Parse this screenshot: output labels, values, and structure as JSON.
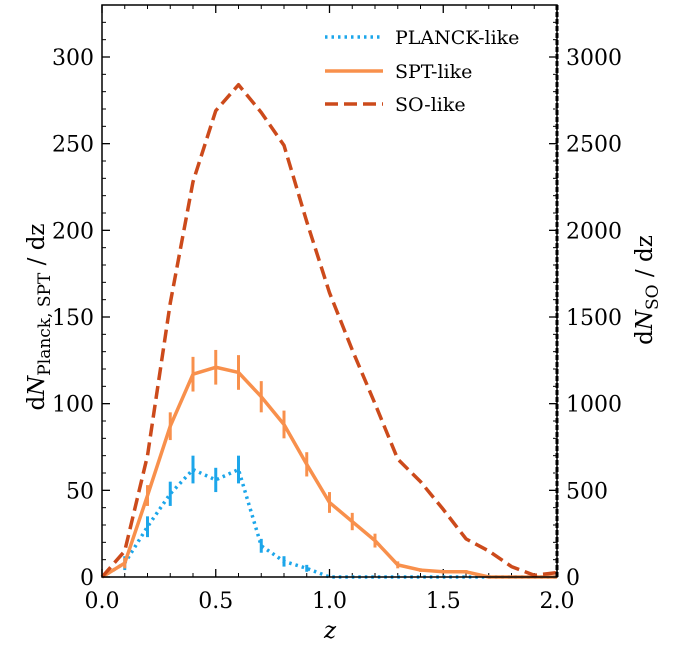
{
  "chart_data": {
    "type": "line",
    "xlabel": "z",
    "ylabel_left": {
      "prefix": "d",
      "var": "N",
      "sub": "Planck, SPT",
      "suffix": " / dz"
    },
    "ylabel_right": {
      "prefix": "d",
      "var": "N",
      "sub": "SO",
      "suffix": " / dz"
    },
    "xlim": [
      0,
      2
    ],
    "ylim_left": [
      0,
      330
    ],
    "ylim_right": [
      0,
      3300
    ],
    "x_ticks": [
      "0.0",
      "0.5",
      "1.0",
      "1.5",
      "2.0"
    ],
    "y_ticks_left": [
      "0",
      "50",
      "100",
      "150",
      "200",
      "250",
      "300"
    ],
    "y_ticks_right": [
      "0",
      "500",
      "1000",
      "1500",
      "2000",
      "2500",
      "3000"
    ],
    "legend_position": "top-right",
    "series": [
      {
        "name": "PLANCK-like",
        "axis": "left",
        "style": "dotted",
        "color": "#1ca6ea",
        "x": [
          0.0,
          0.1,
          0.2,
          0.3,
          0.4,
          0.5,
          0.6,
          0.7,
          0.8,
          0.9,
          1.0,
          1.1,
          1.2,
          1.3,
          1.4,
          1.5,
          1.6,
          1.7,
          1.8,
          1.9,
          2.0
        ],
        "values": [
          0,
          8,
          29,
          48,
          62,
          56,
          62,
          18,
          9,
          5,
          0,
          0,
          0,
          0,
          0,
          0,
          0,
          0,
          0,
          0,
          0
        ],
        "errors": [
          0,
          4,
          6,
          7,
          8,
          7,
          8,
          4,
          3,
          2,
          0,
          0,
          0,
          0,
          0,
          0,
          0,
          0,
          0,
          0,
          0
        ]
      },
      {
        "name": "SPT-like",
        "axis": "left",
        "style": "solid",
        "color": "#f8904c",
        "x": [
          0.0,
          0.1,
          0.2,
          0.3,
          0.4,
          0.5,
          0.6,
          0.7,
          0.8,
          0.9,
          1.0,
          1.1,
          1.2,
          1.3,
          1.4,
          1.5,
          1.6,
          1.7,
          1.8,
          1.9,
          2.0
        ],
        "values": [
          0,
          8,
          47,
          87,
          117,
          121,
          118,
          104,
          88,
          65,
          43,
          32,
          21,
          7,
          4,
          3,
          3,
          0,
          0,
          0,
          0
        ],
        "errors": [
          0,
          3,
          6,
          8,
          10,
          10,
          10,
          9,
          8,
          7,
          6,
          5,
          4,
          2,
          1,
          1,
          1,
          0,
          0,
          0,
          0
        ]
      },
      {
        "name": "SO-like",
        "axis": "right",
        "style": "dashed",
        "color": "#cc4a1b",
        "x": [
          0.0,
          0.1,
          0.2,
          0.3,
          0.4,
          0.5,
          0.6,
          0.7,
          0.8,
          0.9,
          1.0,
          1.1,
          1.2,
          1.3,
          1.4,
          1.5,
          1.6,
          1.7,
          1.8,
          1.9,
          2.0
        ],
        "values": [
          0,
          150,
          700,
          1580,
          2280,
          2690,
          2840,
          2680,
          2490,
          2050,
          1640,
          1310,
          1000,
          680,
          550,
          390,
          220,
          150,
          60,
          10,
          25
        ]
      }
    ]
  }
}
